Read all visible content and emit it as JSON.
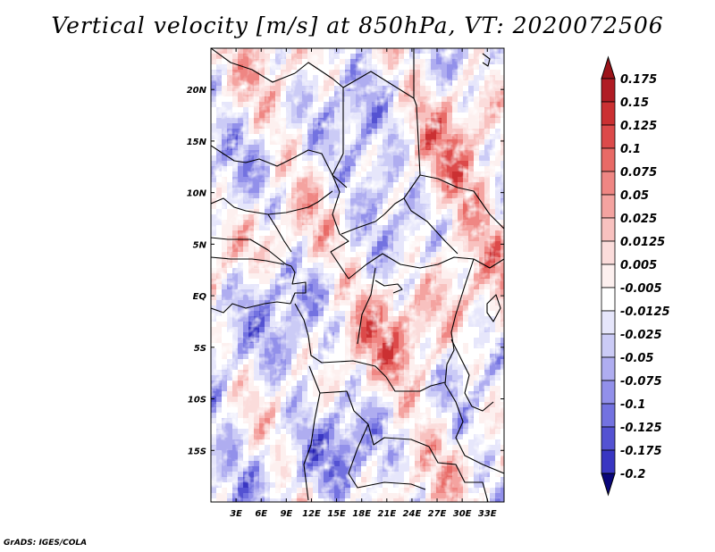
{
  "title": "Vertical velocity [m/s] at 850hPa, VT: 2020072506",
  "footer": "GrADS: IGES/COLA",
  "map": {
    "lon_range": [
      0,
      35
    ],
    "lat_range": [
      -20,
      24
    ],
    "lat_ticks": [
      {
        "value": 20,
        "label": "20N"
      },
      {
        "value": 15,
        "label": "15N"
      },
      {
        "value": 10,
        "label": "10N"
      },
      {
        "value": 5,
        "label": "5N"
      },
      {
        "value": 0,
        "label": "EQ"
      },
      {
        "value": -5,
        "label": "5S"
      },
      {
        "value": -10,
        "label": "10S"
      },
      {
        "value": -15,
        "label": "15S"
      }
    ],
    "lon_ticks": [
      {
        "value": 3,
        "label": "3E"
      },
      {
        "value": 6,
        "label": "6E"
      },
      {
        "value": 9,
        "label": "9E"
      },
      {
        "value": 12,
        "label": "12E"
      },
      {
        "value": 15,
        "label": "15E"
      },
      {
        "value": 18,
        "label": "18E"
      },
      {
        "value": 21,
        "label": "21E"
      },
      {
        "value": 24,
        "label": "24E"
      },
      {
        "value": 27,
        "label": "27E"
      },
      {
        "value": 30,
        "label": "30E"
      },
      {
        "value": 33,
        "label": "33E"
      }
    ],
    "border_color": "#000000"
  },
  "colorbar": {
    "levels": [
      "0.175",
      "0.15",
      "0.125",
      "0.1",
      "0.075",
      "0.05",
      "0.025",
      "0.0125",
      "0.005",
      "-0.005",
      "-0.0125",
      "-0.025",
      "-0.05",
      "-0.075",
      "-0.1",
      "-0.125",
      "-0.175",
      "-0.2"
    ],
    "colors": [
      "#b01c24",
      "#cb3032",
      "#dc4a4a",
      "#e86a66",
      "#ef8683",
      "#f4a3a0",
      "#f8c1bf",
      "#fbdcdb",
      "#fdf0ef",
      "#ffffff",
      "#e6e6fb",
      "#cbcbf6",
      "#afadf0",
      "#9290ea",
      "#7372e0",
      "#5452d2",
      "#3936c2",
      "#2420b0",
      "#110c8f"
    ],
    "top_color": "#9c141a",
    "bottom_color": "#0a067a"
  }
}
